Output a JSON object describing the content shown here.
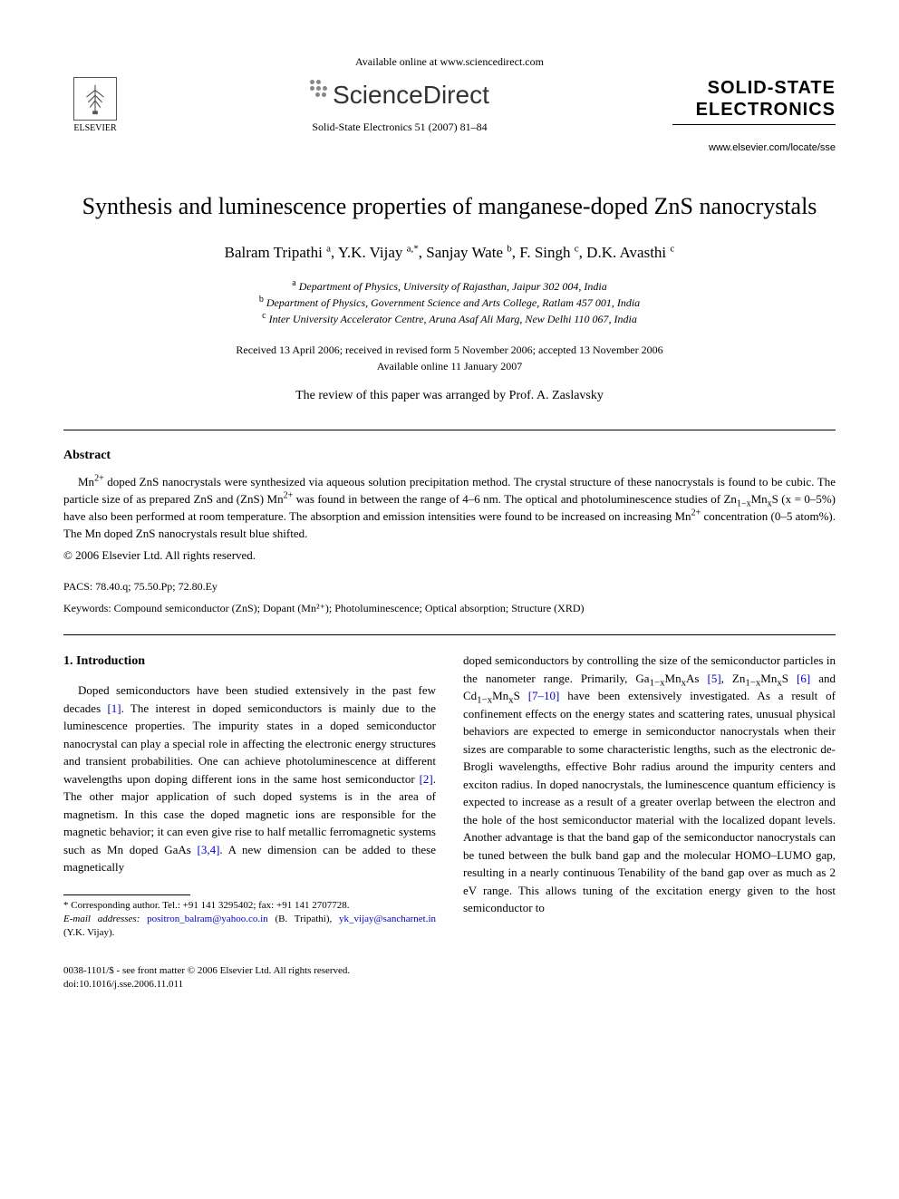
{
  "header": {
    "available_online": "Available online at www.sciencedirect.com",
    "sciencedirect": "ScienceDirect",
    "elsevier": "ELSEVIER",
    "journal_ref": "Solid-State Electronics 51 (2007) 81–84",
    "journal_name_line1": "SOLID-STATE",
    "journal_name_line2": "ELECTRONICS",
    "journal_url": "www.elsevier.com/locate/sse"
  },
  "title": "Synthesis and luminescence properties of manganese-doped ZnS nanocrystals",
  "authors_html": "Balram Tripathi <sup>a</sup>, Y.K. Vijay <sup>a,*</sup>, Sanjay Wate <sup>b</sup>, F. Singh <sup>c</sup>, D.K. Avasthi <sup>c</sup>",
  "affiliations": {
    "a": "Department of Physics, University of Rajasthan, Jaipur 302 004, India",
    "b": "Department of Physics, Government Science and Arts College, Ratlam 457 001, India",
    "c": "Inter University Accelerator Centre, Aruna Asaf Ali Marg, New Delhi 110 067, India"
  },
  "dates": {
    "line1": "Received 13 April 2006; received in revised form 5 November 2006; accepted 13 November 2006",
    "line2": "Available online 11 January 2007"
  },
  "review_note": "The review of this paper was arranged by Prof. A. Zaslavsky",
  "abstract": {
    "heading": "Abstract",
    "body_html": "Mn<sup>2+</sup> doped ZnS nanocrystals were synthesized via aqueous solution precipitation method. The crystal structure of these nanocrystals is found to be cubic. The particle size of as prepared ZnS and (ZnS) Mn<sup>2+</sup> was found in between the range of 4–6 nm. The optical and photoluminescence studies of Zn<sub>1−x</sub>Mn<sub>x</sub>S (x = 0–5%) have also been performed at room temperature. The absorption and emission intensities were found to be increased on increasing Mn<sup>2+</sup> concentration (0–5 atom%). The Mn doped ZnS nanocrystals result blue shifted.",
    "copyright": "© 2006 Elsevier Ltd. All rights reserved."
  },
  "pacs": {
    "label": "PACS:",
    "value": "78.40.q; 75.50.Pp; 72.80.Ey"
  },
  "keywords": {
    "label": "Keywords:",
    "value": "Compound semiconductor (ZnS); Dopant (Mn²⁺); Photoluminescence; Optical absorption; Structure (XRD)"
  },
  "section1": {
    "heading": "1. Introduction",
    "col1_html": "Doped semiconductors have been studied extensively in the past few decades <span class=\"ref-link\">[1]</span>. The interest in doped semiconductors is mainly due to the luminescence properties. The impurity states in a doped semiconductor nanocrystal can play a special role in affecting the electronic energy structures and transient probabilities. One can achieve photoluminescence at different wavelengths upon doping different ions in the same host semiconductor <span class=\"ref-link\">[2]</span>. The other major application of such doped systems is in the area of magnetism. In this case the doped magnetic ions are responsible for the magnetic behavior; it can even give rise to half metallic ferromagnetic systems such as Mn doped GaAs <span class=\"ref-link\">[3,4]</span>. A new dimension can be added to these magnetically",
    "col2_html": "doped semiconductors by controlling the size of the semiconductor particles in the nanometer range. Primarily, Ga<sub>1−x</sub>Mn<sub>x</sub>As <span class=\"ref-link\">[5]</span>, Zn<sub>1−x</sub>Mn<sub>x</sub>S <span class=\"ref-link\">[6]</span> and Cd<sub>1−x</sub>Mn<sub>x</sub>S <span class=\"ref-link\">[7–10]</span> have been extensively investigated. As a result of confinement effects on the energy states and scattering rates, unusual physical behaviors are expected to emerge in semiconductor nanocrystals when their sizes are comparable to some characteristic lengths, such as the electronic de-Brogli wavelengths, effective Bohr radius around the impurity centers and exciton radius. In doped nanocrystals, the luminescence quantum efficiency is expected to increase as a result of a greater overlap between the electron and the hole of the host semiconductor material with the localized dopant levels. Another advantage is that the band gap of the semiconductor nanocrystals can be tuned between the bulk band gap and the molecular HOMO–LUMO gap, resulting in a nearly continuous Tenability of the band gap over as much as 2 eV range. This allows tuning of the excitation energy given to the host semiconductor to"
  },
  "footnote": {
    "corr": "Corresponding author. Tel.: +91 141 3295402; fax: +91 141 2707728.",
    "email_label": "E-mail addresses:",
    "email1": "positron_balram@yahoo.co.in",
    "email1_person": "(B. Tripathi),",
    "email2": "yk_vijay@sancharnet.in",
    "email2_person": "(Y.K. Vijay)."
  },
  "footer": {
    "line1": "0038-1101/$ - see front matter © 2006 Elsevier Ltd. All rights reserved.",
    "line2": "doi:10.1016/j.sse.2006.11.011"
  },
  "colors": {
    "text": "#000000",
    "link": "#0000cc",
    "background": "#ffffff",
    "dot": "#888888"
  }
}
